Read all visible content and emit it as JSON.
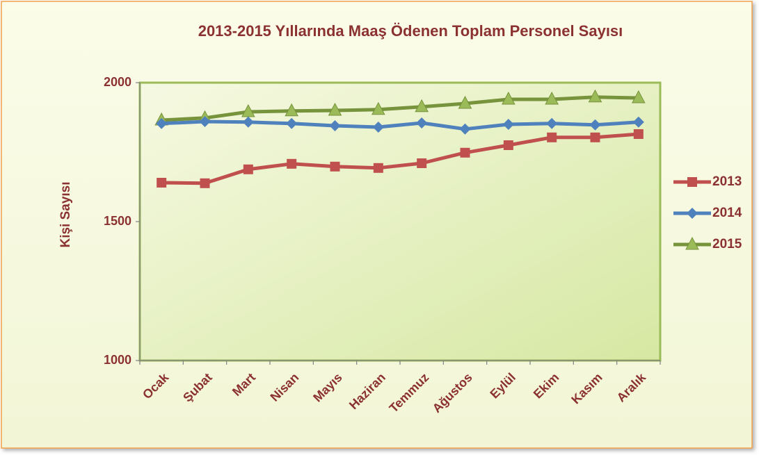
{
  "chart_data": {
    "type": "line",
    "title": "2013-2015 Yıllarında Maaş Ödenen Toplam Personel Sayısı",
    "y_label": "Kişi Sayısı",
    "categories": [
      "Ocak",
      "Şubat",
      "Mart",
      "Nisan",
      "Mayıs",
      "Haziran",
      "Temmuz",
      "Ağustos",
      "Eylül",
      "Ekim",
      "Kasım",
      "Aralık"
    ],
    "series": [
      {
        "name": "2013",
        "color": "#c0504d",
        "marker": "square",
        "values": [
          1640,
          1638,
          1688,
          1708,
          1698,
          1693,
          1710,
          1748,
          1775,
          1803,
          1803,
          1815
        ]
      },
      {
        "name": "2014",
        "color": "#4f81bd",
        "marker": "diamond",
        "values": [
          1853,
          1860,
          1858,
          1853,
          1845,
          1840,
          1855,
          1833,
          1850,
          1853,
          1848,
          1858
        ]
      },
      {
        "name": "2015",
        "color": "#77933c",
        "marker": "triangle",
        "values": [
          1865,
          1873,
          1895,
          1898,
          1900,
          1903,
          1913,
          1925,
          1940,
          1940,
          1948,
          1945
        ]
      }
    ],
    "ylim": [
      1000,
      2000
    ],
    "yticks": [
      1000,
      1500,
      2000
    ],
    "legend": "right"
  }
}
